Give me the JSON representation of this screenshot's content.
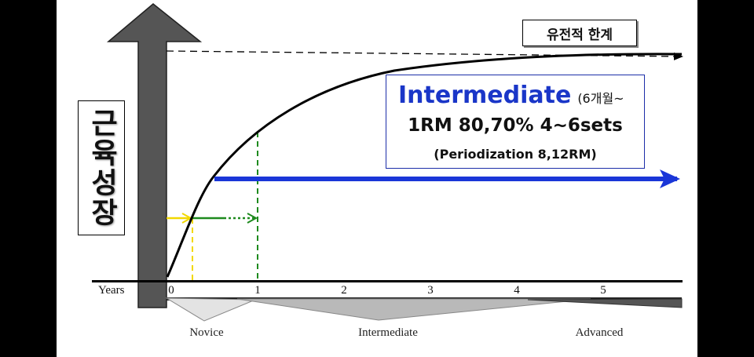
{
  "vertical_label": "근육성장",
  "genetic_limit_label": "유전적 한계",
  "stage_box": {
    "title": "Intermediate",
    "title_note": "(6개월~",
    "line2": "1RM 80,70% 4~6sets",
    "line3": "(Periodization 8,12RM)"
  },
  "timeline": {
    "axis_label": "Years",
    "ticks": [
      "0",
      "1",
      "2",
      "3",
      "4",
      "5"
    ],
    "stages": [
      "Novice",
      "Intermediate",
      "Advanced"
    ]
  },
  "colors": {
    "curve": "#000000",
    "blue_arrow": "#1a36d8",
    "green": "#1e8a1e",
    "yellow": "#f2d800",
    "growth_arrow": "#555555"
  }
}
